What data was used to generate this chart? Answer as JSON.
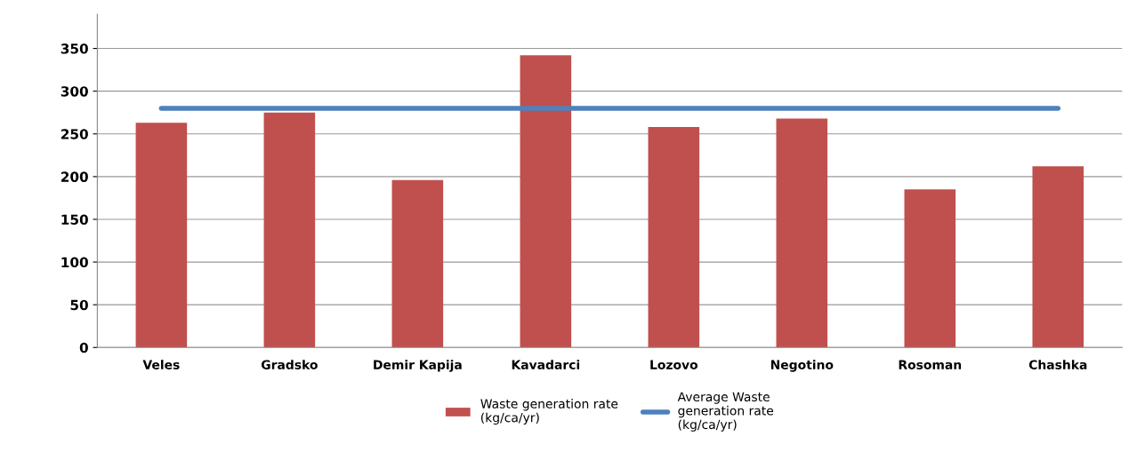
{
  "chart_data": {
    "type": "bar",
    "categories": [
      "Veles",
      "Gradsko",
      "Demir Kapija",
      "Kavadarci",
      "Lozovo",
      "Negotino",
      "Rosoman",
      "Chashka"
    ],
    "series": [
      {
        "name": "Waste generation rate\n(kg/ca/yr)",
        "color": "#c0504d",
        "values": [
          263,
          275,
          196,
          342,
          258,
          268,
          185,
          212
        ]
      },
      {
        "name": "Average Waste\ngeneration rate\n(kg/ca/yr)",
        "type": "line",
        "color": "#4f81bd",
        "values": [
          280,
          280,
          280,
          280,
          280,
          280,
          280,
          280
        ]
      }
    ],
    "ylim": [
      0,
      390
    ],
    "yticks": [
      0,
      50,
      100,
      150,
      200,
      250,
      300,
      350
    ],
    "grid": "y",
    "legend": "bottom"
  }
}
